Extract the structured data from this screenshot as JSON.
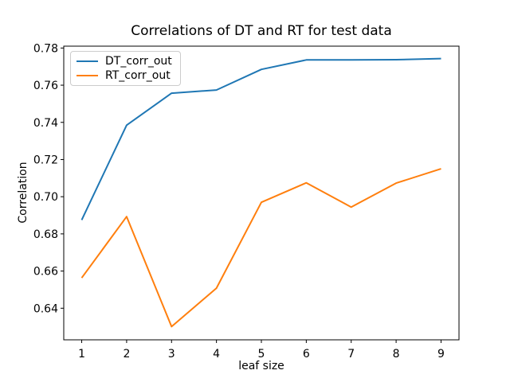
{
  "figure": {
    "title": "Correlations of DT and RT for test data",
    "xlabel": "leaf size",
    "ylabel": "Correlation"
  },
  "legend": {
    "entries": [
      {
        "label": "DT_corr_out",
        "color": "#1f77b4"
      },
      {
        "label": "RT_corr_out",
        "color": "#ff7f0e"
      }
    ]
  },
  "chart_data": {
    "type": "line",
    "title": "Correlations of DT and RT for test data",
    "xlabel": "leaf size",
    "ylabel": "Correlation",
    "x": [
      1,
      2,
      3,
      4,
      5,
      6,
      7,
      8,
      9
    ],
    "series": [
      {
        "name": "DT_corr_out",
        "color": "#1f77b4",
        "values": [
          0.6875,
          0.7385,
          0.7557,
          0.7574,
          0.7685,
          0.7736,
          0.7736,
          0.7737,
          0.7743
        ]
      },
      {
        "name": "RT_corr_out",
        "color": "#ff7f0e",
        "values": [
          0.6563,
          0.6893,
          0.6301,
          0.6508,
          0.697,
          0.7075,
          0.6944,
          0.7073,
          0.715
        ]
      }
    ],
    "xticks": [
      1,
      2,
      3,
      4,
      5,
      6,
      7,
      8,
      9
    ],
    "yticks": [
      0.64,
      0.66,
      0.68,
      0.7,
      0.72,
      0.74,
      0.76,
      0.78
    ],
    "xlim": [
      0.6,
      9.4
    ],
    "ylim": [
      0.623,
      0.781
    ],
    "grid": false,
    "legend_position": "upper left",
    "axes_color": "#000000",
    "background": "#ffffff"
  }
}
